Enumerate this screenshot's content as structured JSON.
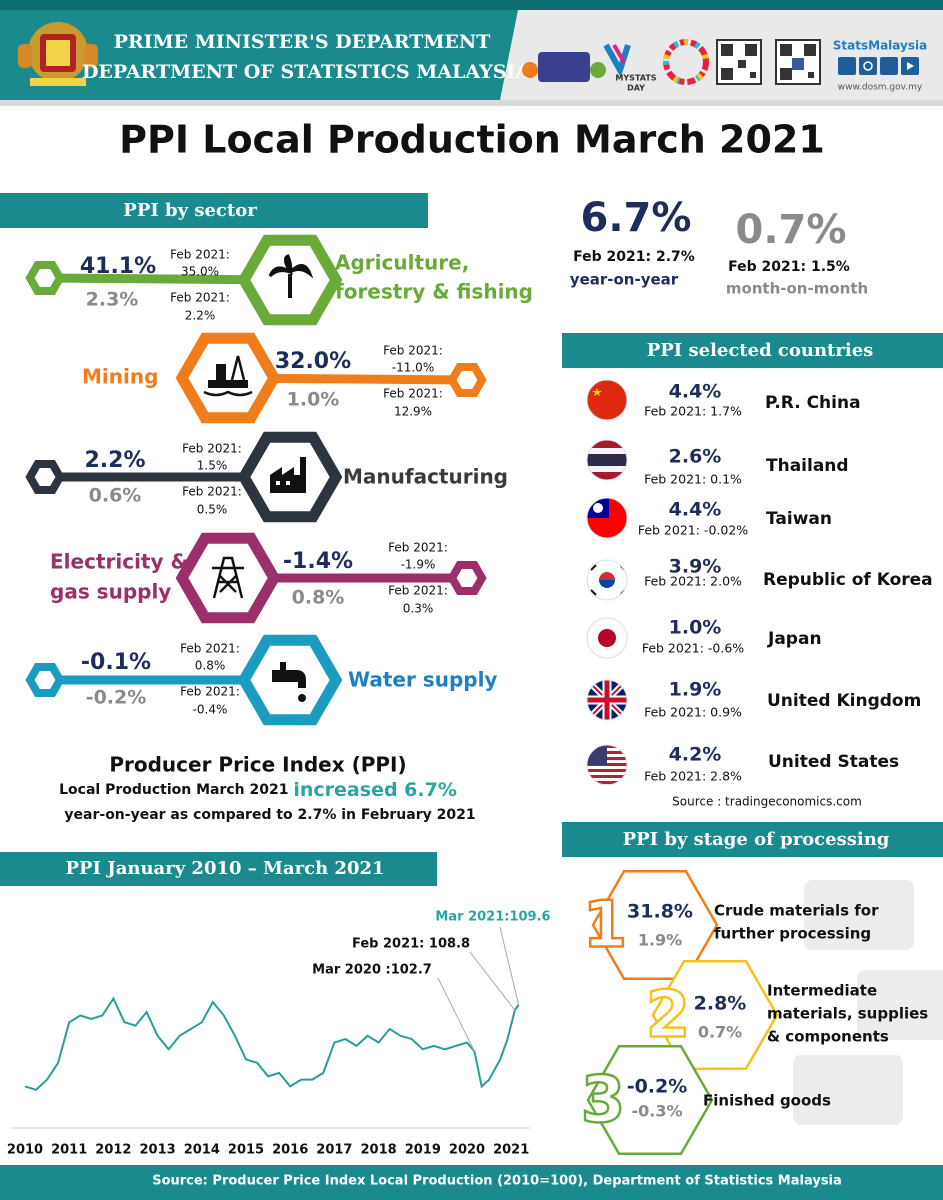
{
  "header": {
    "line1": "PRIME MINISTER'S DEPARTMENT",
    "line2": "DEPARTMENT OF STATISTICS MALAYSIA",
    "mystats": "MYSTATS",
    "day": "DAY",
    "brand": "StatsMalaysia",
    "url": "www.dosm.gov.my"
  },
  "title": "PPI Local Production March 2021",
  "sector": {
    "title": "PPI by sector",
    "feb_label": "Feb 2021:",
    "items": [
      {
        "name_lines": [
          "Agriculture,",
          "forestry & fishing"
        ],
        "yoy": "41.1%",
        "mom": "2.3%",
        "feb_yoy": "35.0%",
        "feb_mom": "2.2%"
      },
      {
        "name_lines": [
          "Mining"
        ],
        "yoy": "32.0%",
        "mom": "1.0%",
        "feb_yoy": "-11.0%",
        "feb_mom": "12.9%"
      },
      {
        "name_lines": [
          "Manufacturing"
        ],
        "yoy": "2.2%",
        "mom": "0.6%",
        "feb_yoy": "1.5%",
        "feb_mom": "0.5%"
      },
      {
        "name_lines": [
          "Electricity &",
          "gas supply"
        ],
        "yoy": "-1.4%",
        "mom": "0.8%",
        "feb_yoy": "-1.9%",
        "feb_mom": "0.3%"
      },
      {
        "name_lines": [
          "Water supply"
        ],
        "yoy": "-0.1%",
        "mom": "-0.2%",
        "feb_yoy": "0.8%",
        "feb_mom": "-0.4%"
      }
    ]
  },
  "headline": {
    "yoy": "6.7%",
    "yoy_feb": "Feb 2021: 2.7%",
    "yoy_label": "year-on-year",
    "mom": "0.7%",
    "mom_feb": "Feb 2021: 1.5%",
    "mom_label": "month-on-month"
  },
  "countries": {
    "title": "PPI selected countries",
    "items": [
      {
        "name": "P.R. China",
        "value": "4.4%",
        "feb": "Feb 2021: 1.7%"
      },
      {
        "name": "Thailand",
        "value": "2.6%",
        "feb": "Feb 2021: 0.1%"
      },
      {
        "name": "Taiwan",
        "value": "4.4%",
        "feb": "Feb 2021: -0.02%"
      },
      {
        "name": "Republic of Korea",
        "value": "3.9%",
        "feb": "Feb 2021: 2.0%"
      },
      {
        "name": "Japan",
        "value": "1.0%",
        "feb": "Feb 2021: -0.6%"
      },
      {
        "name": "United Kingdom",
        "value": "1.9%",
        "feb": "Feb 2021: 0.9%"
      },
      {
        "name": "United States",
        "value": "4.2%",
        "feb": "Feb 2021: 2.8%"
      }
    ],
    "source": "Source :  tradingeconomics.com"
  },
  "summary": {
    "heading": "Producer Price Index (PPI)",
    "line2_a": "Local Production March 2021 ",
    "line2_b": "increased 6.7%",
    "line3": "year-on-year as compared to 2.7% in February 2021"
  },
  "line_chart": {
    "type": "line",
    "title": "PPI January 2010 – March 2021",
    "color": "#2a9d9b",
    "x": [
      2010,
      2010.25,
      2010.5,
      2010.75,
      2011,
      2011.25,
      2011.5,
      2011.75,
      2012,
      2012.25,
      2012.5,
      2012.75,
      2013,
      2013.25,
      2013.5,
      2013.75,
      2014,
      2014.25,
      2014.5,
      2014.75,
      2015,
      2015.25,
      2015.5,
      2015.75,
      2016,
      2016.25,
      2016.5,
      2016.75,
      2017,
      2017.25,
      2017.5,
      2017.75,
      2018,
      2018.25,
      2018.5,
      2018.75,
      2019,
      2019.25,
      2019.5,
      2019.75,
      2020,
      2020.167,
      2020.333,
      2020.5,
      2020.75,
      2020.917,
      2021.083,
      2021.167
    ],
    "values": [
      97.5,
      97.0,
      98.5,
      101,
      107,
      108,
      107.5,
      108,
      110.5,
      107,
      106.5,
      108.5,
      105,
      103,
      105,
      106,
      107,
      110,
      108,
      105,
      101.5,
      101,
      99,
      99.5,
      97.5,
      98.5,
      98.5,
      99.5,
      104,
      104.5,
      103.5,
      105,
      104,
      106,
      105,
      104.5,
      103,
      103.5,
      103,
      103.5,
      104,
      102.7,
      97.5,
      98.5,
      101.5,
      104.5,
      108.8,
      109.6
    ],
    "xlim": [
      2010,
      2021.25
    ],
    "ylim": [
      94,
      114
    ],
    "xticks": [
      2010,
      2011,
      2012,
      2013,
      2014,
      2015,
      2016,
      2017,
      2018,
      2019,
      2020,
      2021
    ],
    "annotations": [
      "Mar 2021:109.6",
      "Feb 2021: 108.8",
      "Mar 2020 :102.7"
    ]
  },
  "stages": {
    "title": "PPI by stage of processing",
    "items": [
      {
        "number": "1",
        "yoy": "31.8%",
        "mom": "1.9%",
        "label_lines": [
          "Crude materials for",
          "further processing"
        ]
      },
      {
        "number": "2",
        "yoy": "2.8%",
        "mom": "0.7%",
        "label_lines": [
          "Intermediate",
          "materials, supplies",
          "& components"
        ]
      },
      {
        "number": "3",
        "yoy": "-0.2%",
        "mom": "-0.3%",
        "label_lines": [
          "Finished goods"
        ]
      }
    ]
  },
  "footer": "Source: Producer Price Index Local Production (2010=100), Department of Statistics Malaysia"
}
